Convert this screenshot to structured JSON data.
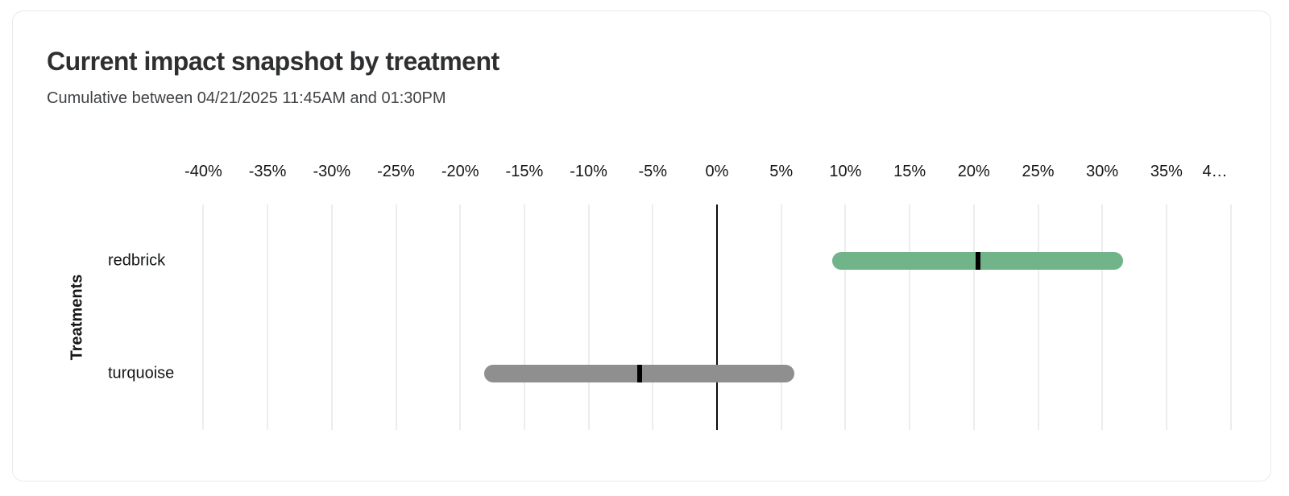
{
  "chart_data": {
    "type": "bar",
    "subtype": "horizontal_range_interval",
    "title": "Current impact snapshot by treatment",
    "subtitle": "Cumulative between 04/21/2025 11:45AM and 01:30PM",
    "xlabel": "",
    "ylabel": "Treatments",
    "categories": [
      "redbrick",
      "turquoise"
    ],
    "series": [
      {
        "name": "redbrick",
        "low_pct": 9.0,
        "mid_pct": 20.3,
        "high_pct": 31.6,
        "color": "#72b489"
      },
      {
        "name": "turquoise",
        "low_pct": -18.1,
        "mid_pct": -6.0,
        "high_pct": 6.0,
        "color": "#8f8f8f"
      }
    ],
    "x_ticks": [
      {
        "value": -40,
        "label": "-40%"
      },
      {
        "value": -35,
        "label": "-35%"
      },
      {
        "value": -30,
        "label": "-30%"
      },
      {
        "value": -25,
        "label": "-25%"
      },
      {
        "value": -20,
        "label": "-20%"
      },
      {
        "value": -15,
        "label": "-15%"
      },
      {
        "value": -10,
        "label": "-10%"
      },
      {
        "value": -5,
        "label": "-5%"
      },
      {
        "value": 0,
        "label": "0%"
      },
      {
        "value": 5,
        "label": "5%"
      },
      {
        "value": 10,
        "label": "10%"
      },
      {
        "value": 15,
        "label": "15%"
      },
      {
        "value": 20,
        "label": "20%"
      },
      {
        "value": 25,
        "label": "25%"
      },
      {
        "value": 30,
        "label": "30%"
      },
      {
        "value": 35,
        "label": "35%"
      },
      {
        "value": 40,
        "label": "4…"
      }
    ],
    "xlim": [
      -40,
      40
    ],
    "grid": true,
    "legend": "none",
    "colors": {
      "grid_line": "#ededed",
      "zero_line": "#0a0a0a",
      "midpoint_marker": "#000000",
      "text": "#141618"
    }
  }
}
